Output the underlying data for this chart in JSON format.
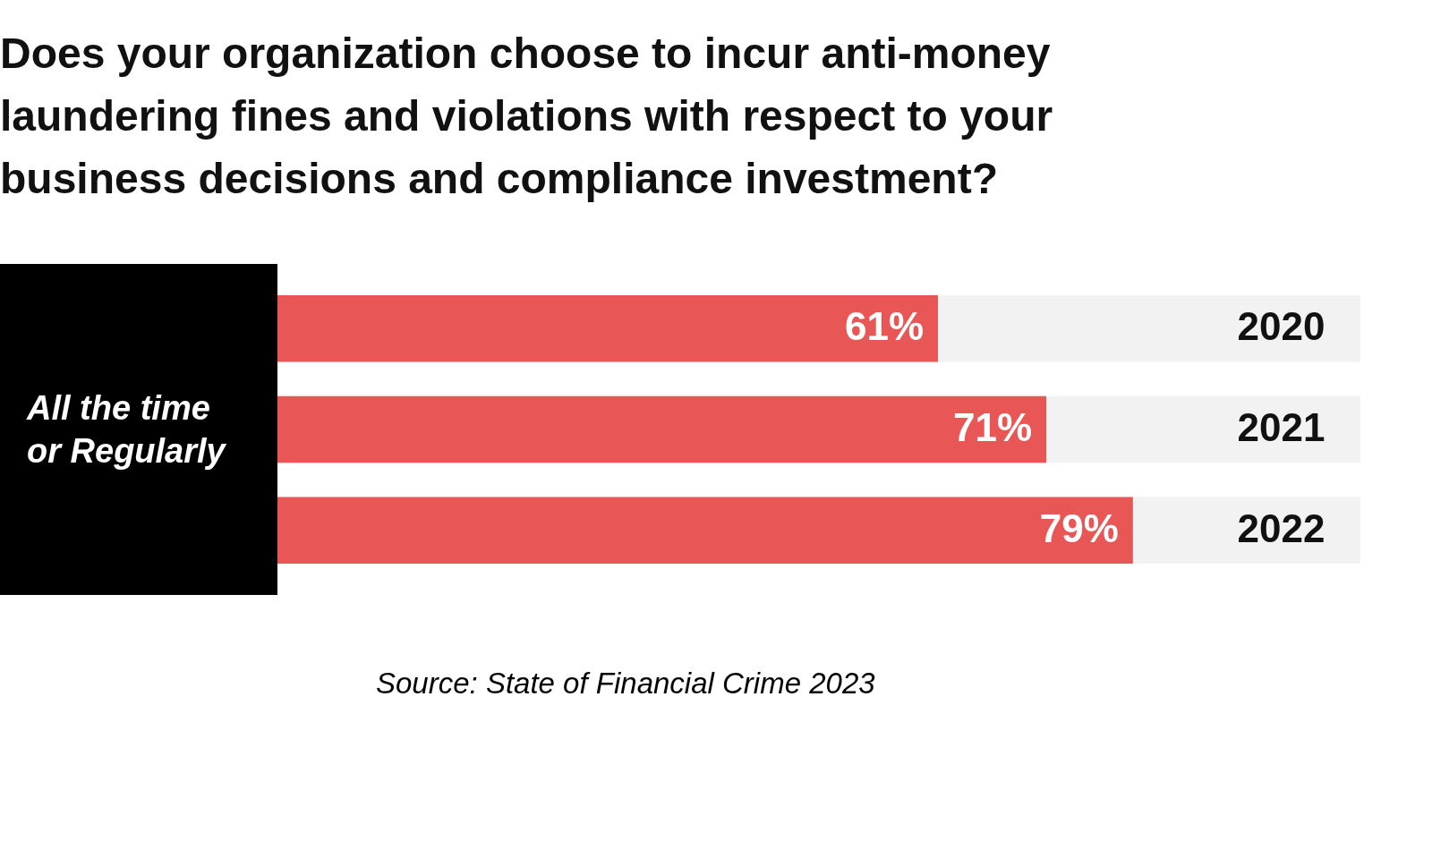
{
  "chart_data": {
    "type": "bar",
    "orientation": "horizontal",
    "stacked": true,
    "title": "Does your organization choose to incur anti-money laundering fines and violations with respect to your business decisions and compliance investment?",
    "categories": [
      "2020",
      "2021",
      "2022"
    ],
    "series": [
      {
        "color": "#e85656",
        "values": [
          61,
          71,
          79
        ],
        "value_labels": [
          "61%",
          "71%",
          "79%"
        ]
      },
      {
        "color": "#f2f2f2",
        "values": [
          39,
          29,
          21
        ]
      }
    ],
    "annotations": [
      "All the time or Regularly",
      "Source: State of Financial Crime 2023"
    ]
  }
}
